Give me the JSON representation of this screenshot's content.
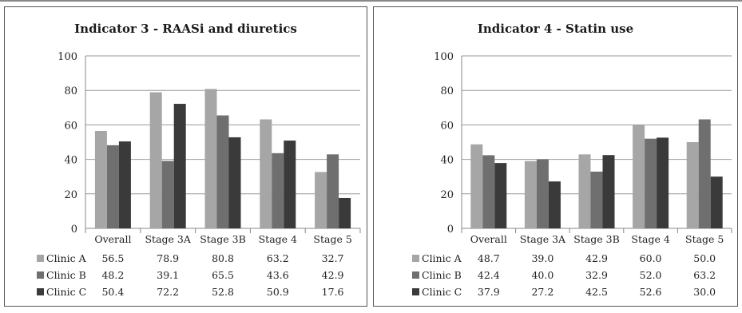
{
  "colors": {
    "Clinic A": "#a6a6a6",
    "Clinic B": "#6f6f6f",
    "Clinic C": "#3a3a3a"
  },
  "chart_data": [
    {
      "type": "bar",
      "title": "Indicator 3 - RAASi and diuretics",
      "categories": [
        "Overall",
        "Stage 3A",
        "Stage 3B",
        "Stage 4",
        "Stage 5"
      ],
      "series": [
        {
          "name": "Clinic A",
          "values": [
            56.5,
            78.9,
            80.8,
            63.2,
            32.7
          ],
          "labels": [
            "56.5",
            "78.9",
            "80.8",
            "63.2",
            "32.7"
          ]
        },
        {
          "name": "Clinic B",
          "values": [
            48.2,
            39.1,
            65.5,
            43.6,
            42.9
          ],
          "labels": [
            "48.2",
            "39.1",
            "65.5",
            "43.6",
            "42.9"
          ]
        },
        {
          "name": "Clinic C",
          "values": [
            50.4,
            72.2,
            52.8,
            50.9,
            17.6
          ],
          "labels": [
            "50.4",
            "72.2",
            "52.8",
            "50.9",
            "17.6"
          ]
        }
      ],
      "ylim": [
        0,
        100
      ],
      "yticks": [
        "0",
        "20",
        "40",
        "60",
        "80",
        "100"
      ],
      "grid": true,
      "legend": "data-table"
    },
    {
      "type": "bar",
      "title": "Indicator 4 - Statin use",
      "categories": [
        "Overall",
        "Stage 3A",
        "Stage 3B",
        "Stage 4",
        "Stage 5"
      ],
      "series": [
        {
          "name": "Clinic A",
          "values": [
            48.7,
            39.0,
            42.9,
            60.0,
            50.0
          ],
          "labels": [
            "48.7",
            "39.0",
            "42.9",
            "60.0",
            "50.0"
          ]
        },
        {
          "name": "Clinic B",
          "values": [
            42.4,
            40.0,
            32.9,
            52.0,
            63.2
          ],
          "labels": [
            "42.4",
            "40.0",
            "32.9",
            "52.0",
            "63.2"
          ]
        },
        {
          "name": "Clinic C",
          "values": [
            37.9,
            27.2,
            42.5,
            52.6,
            30.0
          ],
          "labels": [
            "37.9",
            "27.2",
            "42.5",
            "52.6",
            "30.0"
          ]
        }
      ],
      "ylim": [
        0,
        100
      ],
      "yticks": [
        "0",
        "20",
        "40",
        "60",
        "80",
        "100"
      ],
      "grid": true,
      "legend": "data-table"
    }
  ]
}
